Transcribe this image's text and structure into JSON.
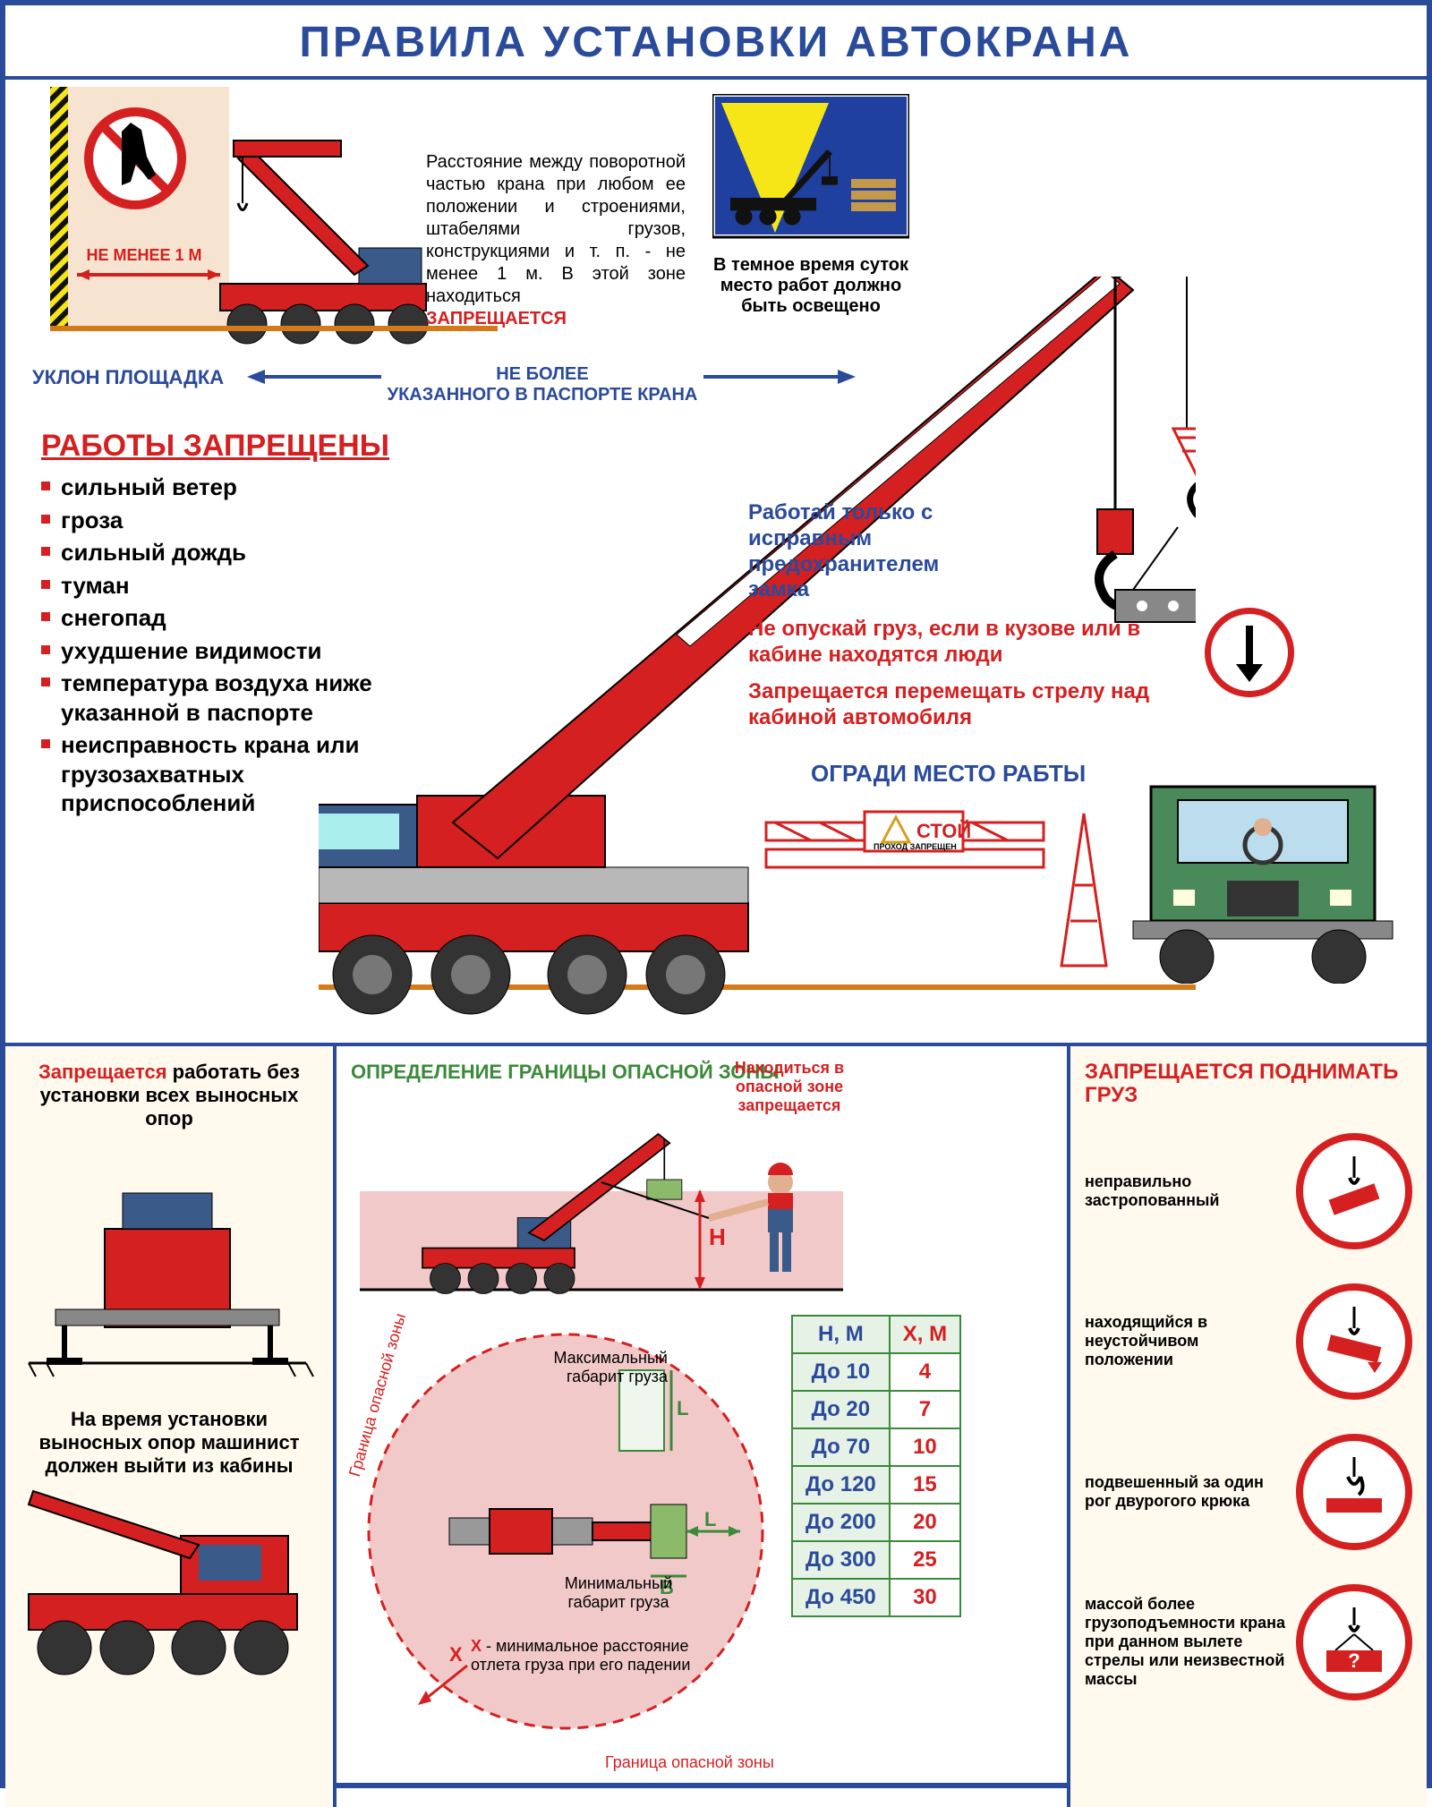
{
  "colors": {
    "frame": "#2a4a9a",
    "red": "#d42020",
    "blue": "#2a4a9a",
    "green": "#3a8a3a",
    "orange": "#d47a1a",
    "peach": "#f6e4d0",
    "cream": "#fff9ee",
    "yellow": "#f7e617",
    "pink": "#f2c9c9"
  },
  "title": "ПРАВИЛА УСТАНОВКИ АВТОКРАНА",
  "top": {
    "clearance": {
      "label": "НЕ МЕНЕЕ 1 М",
      "text": "Расстояние между поворотной частью крана при любом ее положении и строениями, штабелями грузов, конструкциями и т. п. - не менее 1 м. В этой зоне находиться",
      "forbidden": "ЗАПРЕЩАЕТСЯ"
    },
    "night": "В темное время суток место работ должно быть освещено",
    "slope_label": "УКЛОН ПЛОЩАДКА",
    "slope_limit": "НЕ БОЛЕЕ\nУКАЗАННОГО В ПАСПОРТЕ КРАНА",
    "prohibited_title": "РАБОТЫ ЗАПРЕЩЕНЫ",
    "prohibited_items": [
      "сильный ветер",
      "гроза",
      "сильный дождь",
      "туман",
      "снегопад",
      "ухудшение  видимости",
      "температура воздуха ниже указанной в паспорте",
      "неисправность крана или грузозахватных приспособлений"
    ],
    "rules": {
      "safety_lock": "Работай только с исправным предохранителем замка",
      "no_lower": "Не опускай груз, если в кузове или в кабине находятся люди",
      "no_swing": "Запрещается перемещать стрелу над кабиной автомобиля"
    },
    "fence": "ОГРАДИ МЕСТО РАБТЫ",
    "stop_sign": {
      "main": "СТОЙ",
      "sub": "ПРОХОД ЗАПРЕЩЕН"
    }
  },
  "bottom": {
    "p1": {
      "text1_a": "Запрещается",
      "text1_b": " работать без установки всех выносных опор",
      "text2": "На время установки выносных опор машинист должен выйти из кабины"
    },
    "p2": {
      "title": "ОПРЕДЕЛЕНИЕ ГРАНИЦЫ ОПАСНОЙ ЗОНЫ",
      "warn": "Находиться в опасной зоне запрещается",
      "H": "H",
      "max_label": "Максимальный габарит груза",
      "L": "L",
      "min_label": "Минимальный габарит груза",
      "B": "B",
      "x_note": "X - минимальное расстояние отлета груза при его падении",
      "circle_label": "Граница опасной зоны",
      "table": {
        "head_h": "H, М",
        "head_x": "X, М",
        "rows": [
          {
            "h": "До 10",
            "x": "4"
          },
          {
            "h": "До 20",
            "x": "7"
          },
          {
            "h": "До 70",
            "x": "10"
          },
          {
            "h": "До 120",
            "x": "15"
          },
          {
            "h": "До 200",
            "x": "20"
          },
          {
            "h": "До 300",
            "x": "25"
          },
          {
            "h": "До 450",
            "x": "30"
          }
        ]
      }
    },
    "p3": {
      "title": "ЗАПРЕЩАЕТСЯ ПОДНИМАТЬ ГРУЗ",
      "items": [
        "неправильно застропованный",
        "находящийся в неустойчивом положении",
        "подвешенный за один рог двурогого крюка",
        "массой более грузоподъемности крана при данном вылете стрелы или неизвестной массы"
      ]
    }
  }
}
